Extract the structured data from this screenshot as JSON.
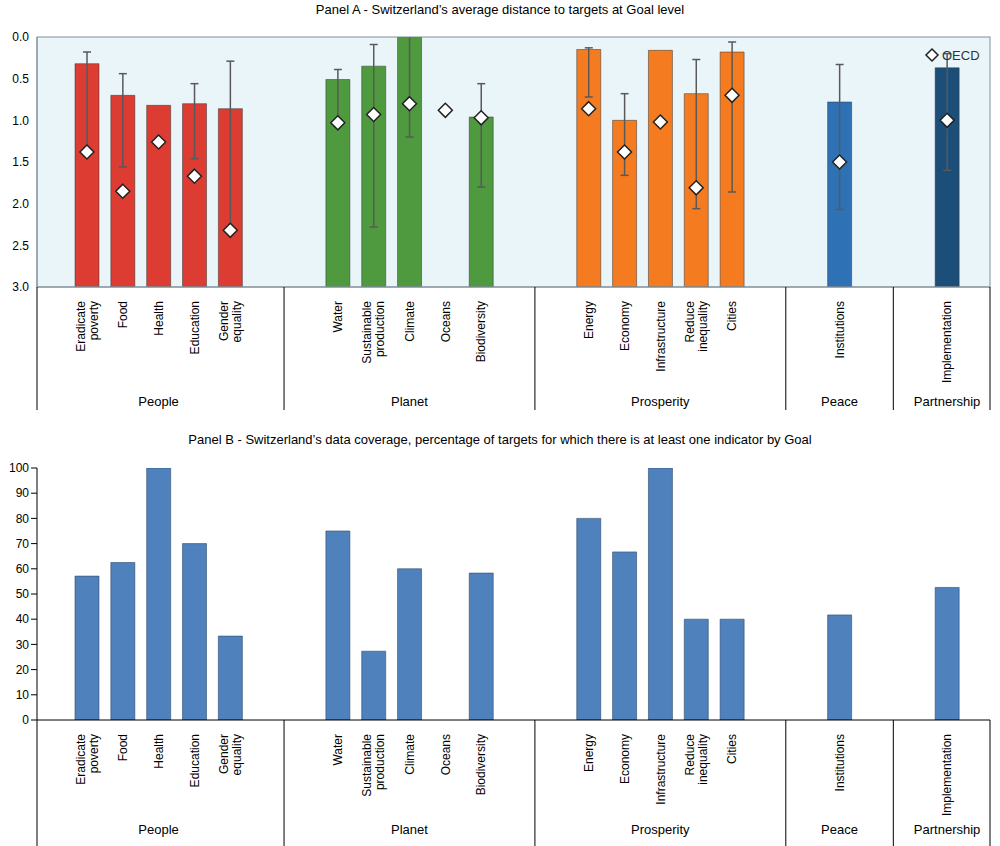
{
  "chart_data": [
    {
      "type": "bar",
      "title": "Panel A - Switzerland’s average distance to targets at Goal level",
      "categories": [
        "Eradicate poverty",
        "Food",
        "Health",
        "Education",
        "Gender equality",
        null,
        null,
        "Water",
        "Sustainable production",
        "Climate",
        "Oceans",
        "Biodiversity",
        null,
        null,
        "Energy",
        "Economy",
        "Infrastructure",
        "Reduce inequality",
        "Cities",
        null,
        null,
        "Institutions",
        null,
        null,
        "Implementation"
      ],
      "groups": [
        "People",
        "Planet",
        "Prosperity",
        "Peace",
        "Partnership"
      ],
      "series": [
        {
          "type": "bar",
          "colors": [
            "#dc3c32",
            "#dc3c32",
            "#dc3c32",
            "#dc3c32",
            "#dc3c32",
            null,
            null,
            "#4f9a3f",
            "#4f9a3f",
            "#4f9a3f",
            "#4f9a3f",
            "#4f9a3f",
            null,
            null,
            "#f47b20",
            "#f47b20",
            "#f47b20",
            "#f47b20",
            "#f47b20",
            null,
            null,
            "#2e72b5",
            null,
            null,
            "#1c4e7a"
          ],
          "values": [
            0.32,
            0.7,
            0.82,
            0.8,
            0.86,
            null,
            null,
            0.51,
            0.35,
            0,
            null,
            0.96,
            null,
            null,
            0.15,
            1.0,
            0.16,
            0.68,
            0.18,
            null,
            null,
            0.78,
            null,
            null,
            0.37
          ],
          "error_low": [
            0.18,
            0.44,
            null,
            0.56,
            0.29,
            null,
            null,
            0.39,
            0.09,
            0,
            null,
            0.56,
            null,
            null,
            0.13,
            0.68,
            null,
            0.27,
            0.06,
            null,
            null,
            0.33,
            null,
            null,
            0.2
          ],
          "error_high": [
            1.35,
            1.56,
            null,
            1.46,
            2.3,
            null,
            null,
            1.0,
            2.28,
            1.2,
            null,
            1.8,
            null,
            null,
            0.72,
            1.66,
            null,
            2.06,
            1.86,
            null,
            null,
            2.07,
            null,
            null,
            1.6
          ]
        },
        {
          "name": "OECD",
          "type": "scatter",
          "marker": "diamond",
          "color": "#ffffff",
          "values": [
            1.38,
            1.85,
            1.26,
            1.67,
            2.32,
            null,
            null,
            1.03,
            0.93,
            0.8,
            0.88,
            0.97,
            null,
            null,
            0.86,
            1.38,
            1.02,
            1.81,
            0.7,
            null,
            null,
            1.5,
            null,
            null,
            1.0
          ]
        }
      ],
      "ylim": [
        3,
        0
      ],
      "yticks": [
        {
          "value": 0,
          "label": "0.0"
        },
        0.5,
        {
          "value": 1,
          "label": "1.0"
        },
        1.5,
        {
          "value": 2,
          "label": "2.0"
        },
        2.5,
        {
          "value": 3,
          "label": "3.0"
        }
      ],
      "legend": "top-right",
      "grid": false
    },
    {
      "type": "bar",
      "title": "Panel B - Switzerland’s data coverage, percentage of targets for which there is at least one indicator by Goal",
      "categories": [
        "Eradicate poverty",
        "Food",
        "Health",
        "Education",
        "Gender equality",
        null,
        null,
        "Water",
        "Sustainable production",
        "Climate",
        "Oceans",
        "Biodiversity",
        null,
        null,
        "Energy",
        "Economy",
        "Infrastructure",
        "Reduce inequality",
        "Cities",
        null,
        null,
        "Institutions",
        null,
        null,
        "Implementation"
      ],
      "groups": [
        "People",
        "Planet",
        "Prosperity",
        "Peace",
        "Partnership"
      ],
      "values": [
        57.1,
        62.5,
        100,
        70,
        33.3,
        null,
        null,
        75,
        27.3,
        60,
        0,
        58.3,
        null,
        null,
        80,
        66.7,
        100,
        40,
        40,
        null,
        null,
        41.7,
        null,
        null,
        52.6
      ],
      "color": "#4f81bd",
      "ylim": [
        0,
        100
      ],
      "yticks": [
        0,
        10,
        20,
        30,
        40,
        50,
        60,
        70,
        80,
        90,
        100
      ],
      "grid": false
    }
  ]
}
